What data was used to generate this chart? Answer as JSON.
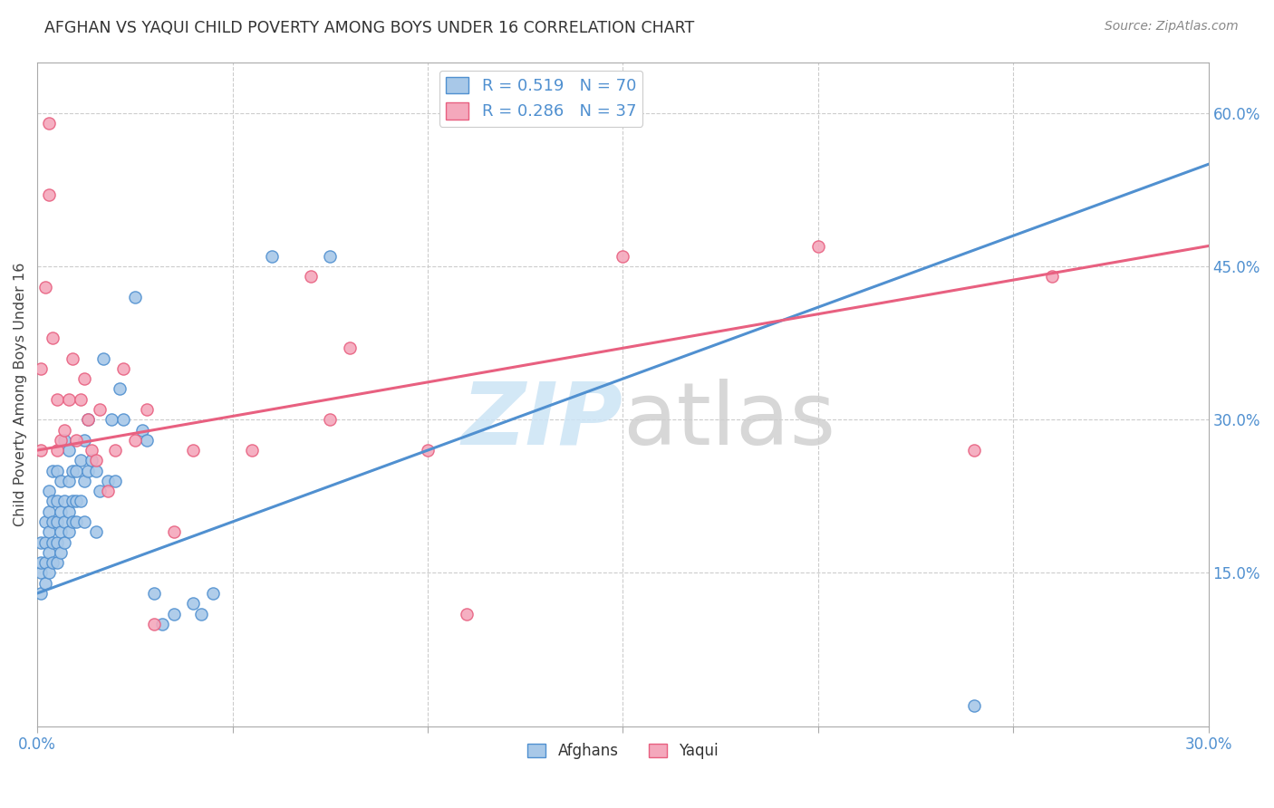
{
  "title": "AFGHAN VS YAQUI CHILD POVERTY AMONG BOYS UNDER 16 CORRELATION CHART",
  "source": "Source: ZipAtlas.com",
  "ylabel": "Child Poverty Among Boys Under 16",
  "xlim": [
    0.0,
    0.3
  ],
  "ylim": [
    0.0,
    0.65
  ],
  "xticks": [
    0.0,
    0.05,
    0.1,
    0.15,
    0.2,
    0.25,
    0.3
  ],
  "xticklabels": [
    "0.0%",
    "",
    "",
    "",
    "",
    "",
    "30.0%"
  ],
  "yticks_right": [
    0.0,
    0.15,
    0.3,
    0.45,
    0.6
  ],
  "yticklabels_right": [
    "",
    "15.0%",
    "30.0%",
    "45.0%",
    "60.0%"
  ],
  "afghan_color": "#a8c8e8",
  "yaqui_color": "#f4a8bc",
  "afghan_line_color": "#5090d0",
  "yaqui_line_color": "#e86080",
  "legend_r_afghan": "0.519",
  "legend_n_afghan": "70",
  "legend_r_yaqui": "0.286",
  "legend_n_yaqui": "37",
  "background_color": "#ffffff",
  "grid_color": "#cccccc",
  "afghan_x": [
    0.001,
    0.001,
    0.001,
    0.001,
    0.002,
    0.002,
    0.002,
    0.002,
    0.003,
    0.003,
    0.003,
    0.003,
    0.003,
    0.004,
    0.004,
    0.004,
    0.004,
    0.004,
    0.005,
    0.005,
    0.005,
    0.005,
    0.005,
    0.006,
    0.006,
    0.006,
    0.006,
    0.007,
    0.007,
    0.007,
    0.007,
    0.008,
    0.008,
    0.008,
    0.008,
    0.009,
    0.009,
    0.009,
    0.01,
    0.01,
    0.01,
    0.011,
    0.011,
    0.012,
    0.012,
    0.012,
    0.013,
    0.013,
    0.014,
    0.015,
    0.015,
    0.016,
    0.017,
    0.018,
    0.019,
    0.02,
    0.021,
    0.022,
    0.025,
    0.027,
    0.028,
    0.03,
    0.032,
    0.035,
    0.04,
    0.042,
    0.045,
    0.06,
    0.075,
    0.24
  ],
  "afghan_y": [
    0.13,
    0.15,
    0.16,
    0.18,
    0.14,
    0.16,
    0.18,
    0.2,
    0.15,
    0.17,
    0.19,
    0.21,
    0.23,
    0.16,
    0.18,
    0.2,
    0.22,
    0.25,
    0.16,
    0.18,
    0.2,
    0.22,
    0.25,
    0.17,
    0.19,
    0.21,
    0.24,
    0.18,
    0.2,
    0.22,
    0.28,
    0.19,
    0.21,
    0.24,
    0.27,
    0.2,
    0.22,
    0.25,
    0.2,
    0.22,
    0.25,
    0.22,
    0.26,
    0.2,
    0.24,
    0.28,
    0.25,
    0.3,
    0.26,
    0.19,
    0.25,
    0.23,
    0.36,
    0.24,
    0.3,
    0.24,
    0.33,
    0.3,
    0.42,
    0.29,
    0.28,
    0.13,
    0.1,
    0.11,
    0.12,
    0.11,
    0.13,
    0.46,
    0.46,
    0.02
  ],
  "yaqui_x": [
    0.001,
    0.001,
    0.002,
    0.003,
    0.003,
    0.004,
    0.005,
    0.005,
    0.006,
    0.007,
    0.008,
    0.009,
    0.01,
    0.011,
    0.012,
    0.013,
    0.014,
    0.015,
    0.016,
    0.018,
    0.02,
    0.022,
    0.025,
    0.028,
    0.03,
    0.035,
    0.04,
    0.055,
    0.07,
    0.075,
    0.08,
    0.1,
    0.11,
    0.15,
    0.2,
    0.24,
    0.26
  ],
  "yaqui_y": [
    0.27,
    0.35,
    0.43,
    0.52,
    0.59,
    0.38,
    0.27,
    0.32,
    0.28,
    0.29,
    0.32,
    0.36,
    0.28,
    0.32,
    0.34,
    0.3,
    0.27,
    0.26,
    0.31,
    0.23,
    0.27,
    0.35,
    0.28,
    0.31,
    0.1,
    0.19,
    0.27,
    0.27,
    0.44,
    0.3,
    0.37,
    0.27,
    0.11,
    0.46,
    0.47,
    0.27,
    0.44
  ],
  "afghan_trendline": [
    0.0,
    0.3,
    0.13,
    0.55
  ],
  "yaqui_trendline": [
    0.0,
    0.3,
    0.27,
    0.47
  ]
}
